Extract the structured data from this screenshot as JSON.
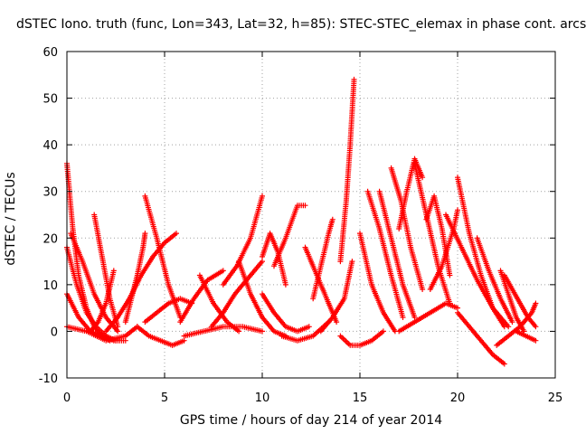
{
  "chart_data": {
    "type": "scatter",
    "title": "dSTEC Iono. truth (func, Lon=343, Lat=32, h=85): STEC-STEC_elemax in phase cont. arcs",
    "xlabel": "GPS time / hours of day 214 of year 2014",
    "ylabel": "dSTEC  / TECUs",
    "xlim": [
      0,
      25
    ],
    "ylim": [
      -10,
      60
    ],
    "xticks": [
      "0",
      "5",
      "10",
      "15",
      "20",
      "25"
    ],
    "yticks": [
      "-10",
      "0",
      "10",
      "20",
      "30",
      "40",
      "50",
      "60"
    ],
    "grid": true,
    "marker": "+",
    "color": "#ff0000",
    "series": [
      {
        "x": [
          0.0,
          0.3,
          0.6,
          1.0,
          1.4,
          1.8,
          2.2
        ],
        "y": [
          36,
          22,
          12,
          5,
          1,
          -1,
          -2
        ]
      },
      {
        "x": [
          0.0,
          0.5,
          1.0,
          1.5,
          2.0,
          2.5
        ],
        "y": [
          18,
          10,
          4,
          1,
          -1,
          -2
        ]
      },
      {
        "x": [
          0.0,
          0.6,
          1.2,
          1.8,
          2.4,
          3.0
        ],
        "y": [
          8,
          3,
          0,
          -1,
          -2,
          -2
        ]
      },
      {
        "x": [
          0.2,
          0.8,
          1.4,
          2.0,
          2.6
        ],
        "y": [
          21,
          15,
          8,
          3,
          0
        ]
      },
      {
        "x": [
          0.0,
          1.0,
          2.0,
          3.0,
          3.6
        ],
        "y": [
          1,
          0,
          -2,
          -1,
          1
        ]
      },
      {
        "x": [
          1.4,
          1.8,
          2.2,
          2.6
        ],
        "y": [
          25,
          16,
          7,
          1
        ]
      },
      {
        "x": [
          2.4,
          2.0,
          1.6,
          1.2
        ],
        "y": [
          13,
          6,
          2,
          0
        ]
      },
      {
        "x": [
          3.0,
          3.3,
          3.6,
          3.9,
          4.0
        ],
        "y": [
          2,
          7,
          12,
          18,
          21
        ]
      },
      {
        "x": [
          2.0,
          2.6,
          3.2,
          3.8,
          4.4,
          5.0,
          5.6
        ],
        "y": [
          0,
          3,
          7,
          12,
          16,
          19,
          21
        ]
      },
      {
        "x": [
          4.0,
          4.6,
          5.2,
          5.8
        ],
        "y": [
          29,
          20,
          10,
          3
        ]
      },
      {
        "x": [
          3.6,
          4.2,
          4.8,
          5.4,
          6.0
        ],
        "y": [
          1,
          -1,
          -2,
          -3,
          -2
        ]
      },
      {
        "x": [
          4.0,
          4.6,
          5.2,
          5.8,
          6.4
        ],
        "y": [
          2,
          4,
          6,
          7,
          6
        ]
      },
      {
        "x": [
          6.0,
          7.0,
          8.0,
          9.0,
          10.0
        ],
        "y": [
          -1,
          0,
          1,
          1,
          0
        ]
      },
      {
        "x": [
          5.8,
          6.5,
          7.2,
          8.0
        ],
        "y": [
          2,
          7,
          11,
          13
        ]
      },
      {
        "x": [
          6.8,
          7.5,
          8.2,
          8.8
        ],
        "y": [
          12,
          6,
          2,
          0
        ]
      },
      {
        "x": [
          7.4,
          8.0,
          8.6,
          9.2,
          10.0
        ],
        "y": [
          1,
          4,
          8,
          11,
          15
        ]
      },
      {
        "x": [
          8.0,
          8.7,
          9.4,
          10.0
        ],
        "y": [
          10,
          14,
          20,
          29
        ]
      },
      {
        "x": [
          8.8,
          9.4,
          10.0,
          10.6,
          11.2
        ],
        "y": [
          15,
          8,
          3,
          0,
          -1
        ]
      },
      {
        "x": [
          10.0,
          10.4,
          10.8,
          11.2
        ],
        "y": [
          16,
          21,
          17,
          10
        ]
      },
      {
        "x": [
          10.0,
          10.6,
          11.2,
          11.8,
          12.4
        ],
        "y": [
          8,
          4,
          1,
          0,
          1
        ]
      },
      {
        "x": [
          10.6,
          11.2,
          11.8,
          12.2
        ],
        "y": [
          14,
          20,
          27,
          27
        ]
      },
      {
        "x": [
          11.0,
          11.8,
          12.6,
          13.4
        ],
        "y": [
          -1,
          -2,
          -1,
          2
        ]
      },
      {
        "x": [
          12.2,
          12.8,
          13.4,
          13.8
        ],
        "y": [
          18,
          12,
          6,
          2
        ]
      },
      {
        "x": [
          12.6,
          13.0,
          13.4,
          13.6
        ],
        "y": [
          7,
          14,
          21,
          24
        ]
      },
      {
        "x": [
          13.0,
          13.6,
          14.2,
          14.6
        ],
        "y": [
          0,
          3,
          7,
          15
        ]
      },
      {
        "x": [
          14.0,
          14.3,
          14.5,
          14.7
        ],
        "y": [
          15,
          28,
          40,
          54
        ]
      },
      {
        "x": [
          14.0,
          14.5,
          15.0,
          15.6,
          16.2
        ],
        "y": [
          -1,
          -3,
          -3,
          -2,
          0
        ]
      },
      {
        "x": [
          15.0,
          15.6,
          16.2,
          16.8
        ],
        "y": [
          21,
          10,
          4,
          0
        ]
      },
      {
        "x": [
          15.4,
          16.0,
          16.6,
          17.2
        ],
        "y": [
          30,
          22,
          12,
          3
        ]
      },
      {
        "x": [
          16.0,
          16.6,
          17.2,
          17.8
        ],
        "y": [
          30,
          20,
          10,
          3
        ]
      },
      {
        "x": [
          16.6,
          17.1,
          17.6,
          18.2
        ],
        "y": [
          35,
          28,
          18,
          9
        ]
      },
      {
        "x": [
          17.0,
          17.4,
          17.8,
          18.2
        ],
        "y": [
          22,
          30,
          37,
          33
        ]
      },
      {
        "x": [
          17.8,
          18.4,
          19.0,
          19.6
        ],
        "y": [
          36,
          25,
          14,
          6
        ]
      },
      {
        "x": [
          18.4,
          18.8,
          19.2,
          19.6
        ],
        "y": [
          24,
          29,
          22,
          12
        ]
      },
      {
        "x": [
          17.0,
          17.8,
          18.6,
          19.4,
          20.0
        ],
        "y": [
          0,
          2,
          4,
          6,
          5
        ]
      },
      {
        "x": [
          18.6,
          19.2,
          19.8,
          20.0
        ],
        "y": [
          9,
          14,
          22,
          26
        ]
      },
      {
        "x": [
          20.0,
          20.6,
          21.2,
          21.8,
          22.4
        ],
        "y": [
          33,
          21,
          12,
          5,
          1
        ]
      },
      {
        "x": [
          19.4,
          20.2,
          21.0,
          21.8,
          22.6
        ],
        "y": [
          25,
          18,
          11,
          5,
          1
        ]
      },
      {
        "x": [
          20.0,
          20.6,
          21.2,
          21.8,
          22.4
        ],
        "y": [
          4,
          1,
          -2,
          -5,
          -7
        ]
      },
      {
        "x": [
          21.0,
          21.6,
          22.2,
          22.8
        ],
        "y": [
          20,
          13,
          7,
          2
        ]
      },
      {
        "x": [
          22.2,
          22.6,
          23.0,
          23.4
        ],
        "y": [
          13,
          8,
          3,
          0
        ]
      },
      {
        "x": [
          22.4,
          22.8,
          23.2,
          23.6,
          24.0
        ],
        "y": [
          12,
          9,
          6,
          3,
          1
        ]
      },
      {
        "x": [
          22.0,
          22.6,
          23.2,
          23.8,
          24.0
        ],
        "y": [
          -3,
          -1,
          1,
          4,
          6
        ]
      },
      {
        "x": [
          23.0,
          23.5,
          24.0
        ],
        "y": [
          0,
          -1,
          -2
        ]
      }
    ]
  }
}
